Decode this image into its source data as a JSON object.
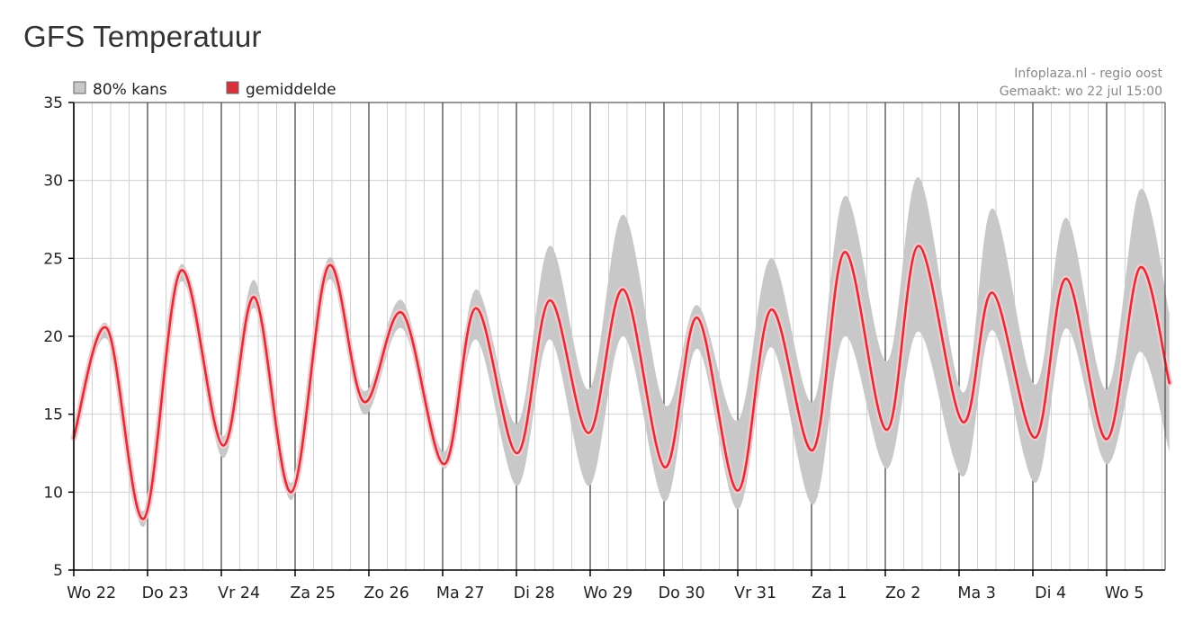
{
  "page": {
    "title": "GFS Temperatuur"
  },
  "credit": {
    "line1": "Infoplaza.nl - regio oost",
    "line2": "Gemaakt: wo 22 jul 15:00"
  },
  "legend": {
    "band_label": "80% kans",
    "mean_label": "gemiddelde"
  },
  "colors": {
    "band": "#c8c8c8",
    "mean": "#d9303a",
    "mean_halo": "#f6c9cc",
    "grid_major": "#555555",
    "grid_minor": "#d0d0d0",
    "axis": "#000000"
  },
  "chart_data": {
    "type": "area",
    "title": "GFS Temperatuur",
    "xlabel": "",
    "ylabel": "",
    "ylim": [
      5,
      35
    ],
    "yticks": [
      5,
      10,
      15,
      20,
      25,
      30,
      35
    ],
    "grid": true,
    "legend_position": "top-left",
    "day_labels": [
      "Wo 22",
      "Do 23",
      "Vr 24",
      "Za 25",
      "Zo 26",
      "Ma 27",
      "Di 28",
      "Wo 29",
      "Do 30",
      "Vr 31",
      "Za 1",
      "Zo 2",
      "Ma 3",
      "Di 4",
      "Wo 5"
    ],
    "x_unit": "days since Wo 22 00:00",
    "x_range": [
      0,
      14.85
    ],
    "series": [
      {
        "name": "gemiddelde",
        "points": [
          [
            0,
            13.5
          ],
          [
            0.45,
            20.5
          ],
          [
            0.95,
            8.3
          ],
          [
            1.45,
            24.2
          ],
          [
            2.02,
            13.0
          ],
          [
            2.45,
            22.5
          ],
          [
            2.95,
            10.0
          ],
          [
            3.45,
            24.5
          ],
          [
            3.93,
            15.8
          ],
          [
            4.45,
            21.5
          ],
          [
            5.02,
            11.8
          ],
          [
            5.45,
            21.8
          ],
          [
            6.01,
            12.5
          ],
          [
            6.45,
            22.3
          ],
          [
            6.98,
            13.8
          ],
          [
            7.45,
            23.0
          ],
          [
            8.01,
            11.6
          ],
          [
            8.45,
            21.2
          ],
          [
            9.0,
            10.1
          ],
          [
            9.45,
            21.7
          ],
          [
            10.02,
            12.7
          ],
          [
            10.45,
            25.4
          ],
          [
            11.02,
            14.0
          ],
          [
            11.45,
            25.8
          ],
          [
            12.05,
            14.5
          ],
          [
            12.45,
            22.8
          ],
          [
            13.03,
            13.5
          ],
          [
            13.45,
            23.7
          ],
          [
            14.0,
            13.4
          ],
          [
            14.45,
            24.4
          ],
          [
            14.85,
            17.0
          ]
        ]
      },
      {
        "name": "80% kans",
        "upper": [
          [
            0,
            14.0
          ],
          [
            0.45,
            20.8
          ],
          [
            0.95,
            8.8
          ],
          [
            1.45,
            24.6
          ],
          [
            2.02,
            13.6
          ],
          [
            2.45,
            23.6
          ],
          [
            2.95,
            10.6
          ],
          [
            3.45,
            25.0
          ],
          [
            3.93,
            16.5
          ],
          [
            4.45,
            22.3
          ],
          [
            5.02,
            12.6
          ],
          [
            5.45,
            23.0
          ],
          [
            6.01,
            14.4
          ],
          [
            6.45,
            25.8
          ],
          [
            6.98,
            16.6
          ],
          [
            7.45,
            27.8
          ],
          [
            8.01,
            15.6
          ],
          [
            8.45,
            22.0
          ],
          [
            9.0,
            14.6
          ],
          [
            9.45,
            25.0
          ],
          [
            10.02,
            15.8
          ],
          [
            10.45,
            29.0
          ],
          [
            11.02,
            18.4
          ],
          [
            11.45,
            30.2
          ],
          [
            12.05,
            16.4
          ],
          [
            12.45,
            28.2
          ],
          [
            13.03,
            16.9
          ],
          [
            13.45,
            27.6
          ],
          [
            14.0,
            16.6
          ],
          [
            14.45,
            29.4
          ],
          [
            14.85,
            21.5
          ]
        ],
        "lower": [
          [
            0,
            13.0
          ],
          [
            0.45,
            19.8
          ],
          [
            0.95,
            7.8
          ],
          [
            1.45,
            23.5
          ],
          [
            2.02,
            12.2
          ],
          [
            2.45,
            21.8
          ],
          [
            2.95,
            9.5
          ],
          [
            3.45,
            23.6
          ],
          [
            3.93,
            15.0
          ],
          [
            4.45,
            20.5
          ],
          [
            5.02,
            11.5
          ],
          [
            5.45,
            19.8
          ],
          [
            6.01,
            10.4
          ],
          [
            6.45,
            19.8
          ],
          [
            6.98,
            10.4
          ],
          [
            7.45,
            20.0
          ],
          [
            8.01,
            9.4
          ],
          [
            8.45,
            19.2
          ],
          [
            9.0,
            8.9
          ],
          [
            9.45,
            19.3
          ],
          [
            10.02,
            9.2
          ],
          [
            10.45,
            20.0
          ],
          [
            11.02,
            11.5
          ],
          [
            11.45,
            20.3
          ],
          [
            12.05,
            11.0
          ],
          [
            12.45,
            20.4
          ],
          [
            13.03,
            10.6
          ],
          [
            13.45,
            20.5
          ],
          [
            14.0,
            11.8
          ],
          [
            14.45,
            19.0
          ],
          [
            14.85,
            12.6
          ]
        ]
      }
    ]
  }
}
